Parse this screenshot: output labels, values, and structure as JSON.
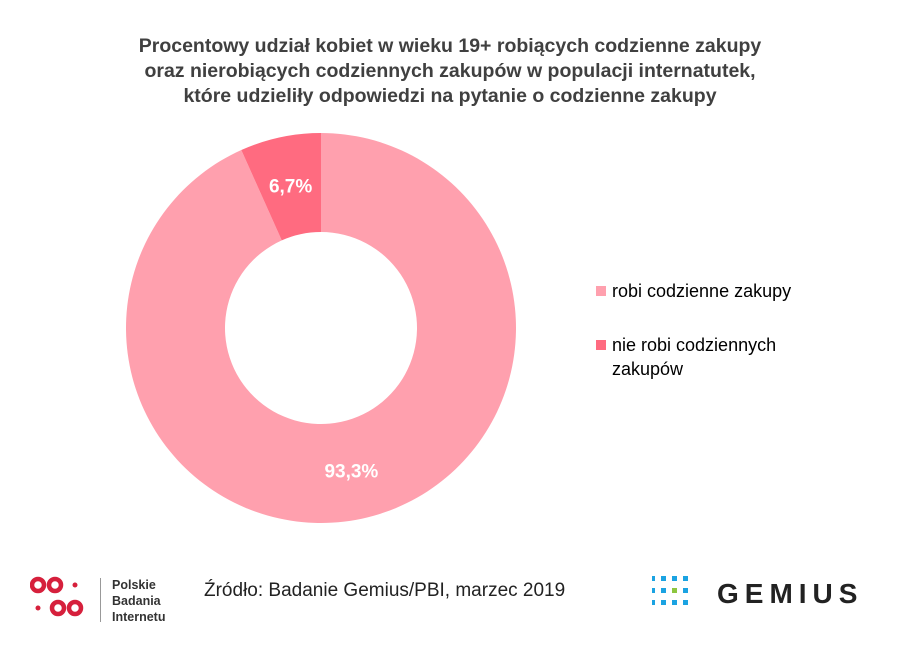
{
  "chart_data": {
    "type": "pie",
    "donut": true,
    "title": "Procentowy udział kobiet w wieku 19+ robiących codzienne zakupy oraz nierobiących codziennych zakupów w populacji internatutek, które udzieliły odpowiedzi na pytanie o codzienne zakupy",
    "title_lines": [
      "Procentowy udział kobiet w wieku 19+ robiących codzienne zakupy",
      "oraz nierobiących codziennych zakupów w populacji internatutek,",
      "które udzieliły odpowiedzi na pytanie o codzienne zakupy"
    ],
    "categories": [
      "robi codzienne zakupy",
      "nie robi codziennych zakupów"
    ],
    "values": [
      93.3,
      6.7
    ],
    "data_labels": [
      "93,3%",
      "6,7%"
    ],
    "colors": [
      "#FFA0AE",
      "#FF6B80"
    ],
    "legend_position": "right"
  },
  "legend": {
    "items": [
      {
        "line1": "robi codzienne zakupy",
        "line2": ""
      },
      {
        "line1": "nie robi codziennych",
        "line2": "zakupów"
      }
    ]
  },
  "footer": {
    "source": "Źródło: Badanie Gemius/PBI, marzec 2019",
    "pbi_logo": [
      "Polskie",
      "Badania",
      "Internetu"
    ],
    "pbi_color": "#D6203C",
    "gemius_logo": "GEMIUS",
    "gemius_dot_color": "#1BA3E2",
    "gemius_accent_color": "#8DC63F"
  }
}
